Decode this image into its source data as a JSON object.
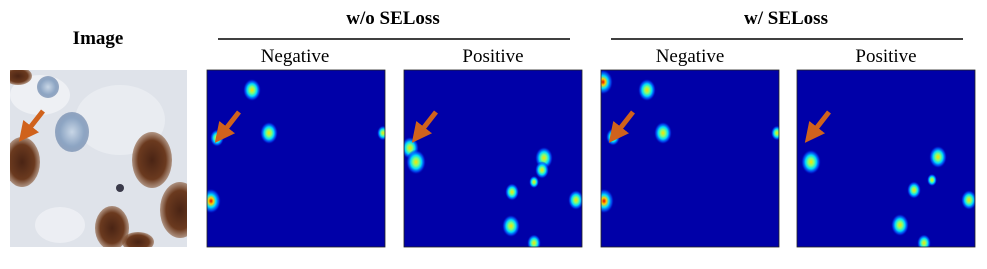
{
  "image_label": "Image",
  "groups": [
    {
      "title": "w/o SELoss",
      "panels": [
        "Negative",
        "Positive"
      ]
    },
    {
      "title": "w/ SELoss",
      "panels": [
        "Negative",
        "Positive"
      ]
    }
  ]
}
